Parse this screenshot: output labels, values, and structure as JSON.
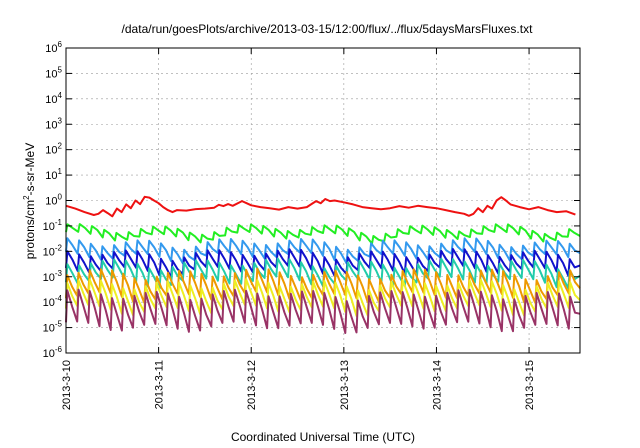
{
  "chart_data": {
    "type": "line",
    "title": "/data/run/goesPlots/archive/2013-03-15/12:00/flux/../flux/5daysMarsFluxes.txt",
    "xlabel": "Coordinated Universal Time (UTC)",
    "ylabel": "protons/cm2-s-sr-MeV",
    "y_scale": "log",
    "ylim": [
      1e-06,
      1000000.0
    ],
    "y_ticks": [
      {
        "value": 1e-06,
        "mant": "10",
        "exp": "-6"
      },
      {
        "value": 1e-05,
        "mant": "10",
        "exp": "-5"
      },
      {
        "value": 0.0001,
        "mant": "10",
        "exp": "-4"
      },
      {
        "value": 0.001,
        "mant": "10",
        "exp": "-3"
      },
      {
        "value": 0.01,
        "mant": "10",
        "exp": "-2"
      },
      {
        "value": 0.1,
        "mant": "10",
        "exp": "-1"
      },
      {
        "value": 1,
        "mant": "10",
        "exp": "0"
      },
      {
        "value": 10,
        "mant": "10",
        "exp": "1"
      },
      {
        "value": 100,
        "mant": "10",
        "exp": "2"
      },
      {
        "value": 1000,
        "mant": "10",
        "exp": "3"
      },
      {
        "value": 10000,
        "mant": "10",
        "exp": "4"
      },
      {
        "value": 100000,
        "mant": "10",
        "exp": "5"
      },
      {
        "value": 1000000,
        "mant": "10",
        "exp": "6"
      }
    ],
    "x_ticks": [
      "2013-3-10",
      "2013-3-11",
      "2013-3-12",
      "2013-3-13",
      "2013-3-14",
      "2013-3-15"
    ],
    "xlim_days": [
      0,
      5.55
    ],
    "grid": true,
    "series": [
      {
        "color": "#ee1111",
        "points": [
          [
            0,
            0.62
          ],
          [
            0.1,
            0.48
          ],
          [
            0.2,
            0.35
          ],
          [
            0.3,
            0.27
          ],
          [
            0.35,
            0.3
          ],
          [
            0.4,
            0.42
          ],
          [
            0.45,
            0.32
          ],
          [
            0.5,
            0.24
          ],
          [
            0.55,
            0.48
          ],
          [
            0.6,
            0.35
          ],
          [
            0.65,
            0.7
          ],
          [
            0.7,
            0.5
          ],
          [
            0.75,
            1.0
          ],
          [
            0.8,
            0.72
          ],
          [
            0.85,
            1.4
          ],
          [
            0.9,
            1.3
          ],
          [
            0.95,
            1.0
          ],
          [
            1.0,
            0.78
          ],
          [
            1.05,
            0.55
          ],
          [
            1.1,
            0.42
          ],
          [
            1.15,
            0.35
          ],
          [
            1.2,
            0.42
          ],
          [
            1.3,
            0.4
          ],
          [
            1.4,
            0.46
          ],
          [
            1.5,
            0.48
          ],
          [
            1.6,
            0.52
          ],
          [
            1.65,
            0.68
          ],
          [
            1.7,
            0.6
          ],
          [
            1.75,
            0.72
          ],
          [
            1.8,
            0.62
          ],
          [
            1.9,
            0.95
          ],
          [
            1.95,
            0.78
          ],
          [
            2.0,
            0.65
          ],
          [
            2.1,
            0.55
          ],
          [
            2.2,
            0.5
          ],
          [
            2.3,
            0.44
          ],
          [
            2.4,
            0.55
          ],
          [
            2.5,
            0.48
          ],
          [
            2.6,
            0.55
          ],
          [
            2.65,
            0.72
          ],
          [
            2.7,
            0.95
          ],
          [
            2.75,
            0.78
          ],
          [
            2.8,
            1.15
          ],
          [
            2.85,
            0.95
          ],
          [
            2.9,
            1.0
          ],
          [
            3.0,
            0.85
          ],
          [
            3.1,
            0.7
          ],
          [
            3.2,
            0.55
          ],
          [
            3.3,
            0.5
          ],
          [
            3.4,
            0.45
          ],
          [
            3.5,
            0.5
          ],
          [
            3.6,
            0.6
          ],
          [
            3.7,
            0.52
          ],
          [
            3.8,
            0.62
          ],
          [
            3.9,
            0.55
          ],
          [
            4.0,
            0.5
          ],
          [
            4.1,
            0.42
          ],
          [
            4.2,
            0.35
          ],
          [
            4.3,
            0.3
          ],
          [
            4.35,
            0.25
          ],
          [
            4.4,
            0.3
          ],
          [
            4.45,
            0.5
          ],
          [
            4.5,
            0.35
          ],
          [
            4.55,
            0.62
          ],
          [
            4.6,
            0.48
          ],
          [
            4.65,
            1.0
          ],
          [
            4.7,
            1.35
          ],
          [
            4.75,
            1.0
          ],
          [
            4.8,
            0.7
          ],
          [
            4.9,
            0.55
          ],
          [
            5.0,
            0.45
          ],
          [
            5.1,
            0.55
          ],
          [
            5.2,
            0.42
          ],
          [
            5.3,
            0.35
          ],
          [
            5.4,
            0.38
          ],
          [
            5.5,
            0.28
          ]
        ]
      },
      {
        "color": "#22ee22",
        "base": 0.04,
        "amp": 2.0,
        "n": 42
      },
      {
        "color": "#3399ee",
        "base": 0.0085,
        "amp": 2.6,
        "n": 44
      },
      {
        "color": "#1111cc",
        "base": 0.0028,
        "amp": 3.0,
        "n": 44
      },
      {
        "color": "#22ccaa",
        "base": 0.0011,
        "amp": 3.2,
        "n": 44
      },
      {
        "color": "#ee9900",
        "base": 0.00035,
        "amp": 4.0,
        "n": 46
      },
      {
        "color": "#eeee22",
        "base": 0.00012,
        "amp": 4.5,
        "n": 46
      },
      {
        "color": "#993366",
        "base": 3.5e-05,
        "amp": 6.0,
        "n": 46
      }
    ]
  }
}
